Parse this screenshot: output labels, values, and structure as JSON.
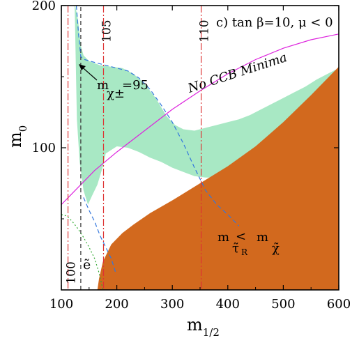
{
  "chart_data": {
    "type": "area",
    "panel_label": "c) tan β=10, μ < 0",
    "xlabel": "m",
    "xlabel_sub": "1/2",
    "ylabel": "m",
    "ylabel_sub": "0",
    "xlim": [
      100,
      600
    ],
    "ylim": [
      0,
      200
    ],
    "xticks": [
      {
        "value": 100,
        "label": "100"
      },
      {
        "value": 200,
        "label": "200"
      },
      {
        "value": 300,
        "label": "300"
      },
      {
        "value": 400,
        "label": "400"
      },
      {
        "value": 500,
        "label": "500"
      },
      {
        "value": 600,
        "label": "600"
      }
    ],
    "yticks": [
      {
        "value": 100,
        "label": "100"
      },
      {
        "value": 200,
        "label": "200"
      }
    ],
    "regions": [
      {
        "name": "cosmologically preferred region",
        "color": "#a8e8c4",
        "upper": [
          [
            125,
            200
          ],
          [
            130,
            190
          ],
          [
            135,
            172
          ],
          [
            140,
            165
          ],
          [
            150,
            161
          ],
          [
            170,
            158
          ],
          [
            190,
            157
          ],
          [
            210,
            156
          ],
          [
            230,
            152
          ],
          [
            250,
            145
          ],
          [
            270,
            135
          ],
          [
            290,
            122
          ],
          [
            305,
            116
          ],
          [
            320,
            113
          ],
          [
            340,
            112
          ],
          [
            360,
            114
          ],
          [
            380,
            116
          ],
          [
            400,
            118
          ],
          [
            420,
            120
          ],
          [
            440,
            123
          ],
          [
            460,
            127
          ],
          [
            480,
            131
          ],
          [
            500,
            135
          ],
          [
            520,
            139
          ],
          [
            540,
            143
          ],
          [
            560,
            148
          ],
          [
            580,
            152
          ],
          [
            600,
            156
          ]
        ],
        "lower": [
          [
            600,
            130
          ],
          [
            580,
            125
          ],
          [
            560,
            119
          ],
          [
            540,
            113
          ],
          [
            520,
            108
          ],
          [
            500,
            103
          ],
          [
            480,
            97
          ],
          [
            460,
            92
          ],
          [
            440,
            87
          ],
          [
            420,
            83
          ],
          [
            400,
            80
          ],
          [
            380,
            79
          ],
          [
            360,
            79
          ],
          [
            340,
            80
          ],
          [
            320,
            83
          ],
          [
            300,
            86
          ],
          [
            280,
            90
          ],
          [
            260,
            93
          ],
          [
            240,
            97
          ],
          [
            220,
            100
          ],
          [
            200,
            101
          ],
          [
            180,
            96
          ],
          [
            175,
            87
          ],
          [
            165,
            74
          ],
          [
            155,
            66
          ],
          [
            148,
            60
          ],
          [
            140,
            70
          ],
          [
            133,
            90
          ],
          [
            128,
            120
          ],
          [
            126,
            160
          ],
          [
            124,
            200
          ]
        ]
      },
      {
        "name": "stau LSP excluded region",
        "color": "#d2691e",
        "boundary": [
          [
            165,
            0
          ],
          [
            168,
            8
          ],
          [
            175,
            20
          ],
          [
            190,
            32
          ],
          [
            210,
            40
          ],
          [
            230,
            46
          ],
          [
            260,
            54
          ],
          [
            300,
            63
          ],
          [
            350,
            75
          ],
          [
            400,
            87
          ],
          [
            450,
            101
          ],
          [
            500,
            118
          ],
          [
            550,
            137
          ],
          [
            600,
            157
          ],
          [
            600,
            0
          ]
        ]
      }
    ],
    "lines": [
      {
        "name": "CCB constraint",
        "label": "No CCB Minima",
        "color": "#dd22dd",
        "style": "solid",
        "points": [
          [
            100,
            60
          ],
          [
            130,
            72
          ],
          [
            160,
            84
          ],
          [
            200,
            97
          ],
          [
            250,
            112
          ],
          [
            300,
            127
          ],
          [
            350,
            140
          ],
          [
            400,
            152
          ],
          [
            450,
            162
          ],
          [
            500,
            170
          ],
          [
            550,
            176
          ],
          [
            600,
            180
          ]
        ]
      },
      {
        "name": "chargino mass limit",
        "label_main": "m",
        "label_sub": "χ±",
        "label_value": "=95",
        "color": "#333333",
        "style": "dashed",
        "points": [
          [
            135,
            0
          ],
          [
            135,
            200
          ]
        ]
      },
      {
        "name": "green region boundary",
        "color": "#3377dd",
        "style": "dashed",
        "points": [
          [
            127,
            200
          ],
          [
            131,
            180
          ],
          [
            135,
            164
          ],
          [
            142,
            162
          ],
          [
            160,
            160
          ],
          [
            190,
            157
          ],
          [
            220,
            154
          ],
          [
            240,
            149
          ],
          [
            260,
            141
          ],
          [
            280,
            130
          ],
          [
            300,
            118
          ],
          [
            320,
            103
          ],
          [
            340,
            86
          ],
          [
            360,
            70
          ],
          [
            380,
            60
          ],
          [
            400,
            53
          ],
          [
            420,
            45
          ]
        ]
      },
      {
        "name": "green region lower boundary",
        "color": "#3377dd",
        "style": "dashed",
        "points": [
          [
            140,
            65
          ],
          [
            150,
            56
          ],
          [
            160,
            48
          ],
          [
            170,
            38
          ],
          [
            180,
            30
          ],
          [
            190,
            22
          ],
          [
            198,
            12
          ]
        ]
      },
      {
        "name": "selectron boundary",
        "label": "ẽ",
        "color": "#33aa33",
        "style": "dotted",
        "points": [
          [
            100,
            53
          ],
          [
            110,
            52
          ],
          [
            120,
            48
          ],
          [
            130,
            43
          ],
          [
            140,
            37
          ],
          [
            150,
            30
          ],
          [
            160,
            22
          ],
          [
            168,
            12
          ],
          [
            175,
            0
          ]
        ]
      }
    ],
    "higgs_contours": [
      {
        "label": "100",
        "x": 112,
        "ylabel_value": 20
      },
      {
        "label": "105",
        "x": 176,
        "ylabel_value": 190
      },
      {
        "label": "110",
        "x": 352,
        "ylabel_value": 190
      }
    ],
    "region_label": {
      "main1": "m",
      "sub1": "τ̃",
      "subsub1": "R",
      "rel": "<",
      "main2": "m",
      "sub2": "χ̃"
    },
    "colors": {
      "green": "#a8e8c4",
      "orange": "#d2691e",
      "magenta": "#dd22dd",
      "red": "#dd3333"
    }
  }
}
